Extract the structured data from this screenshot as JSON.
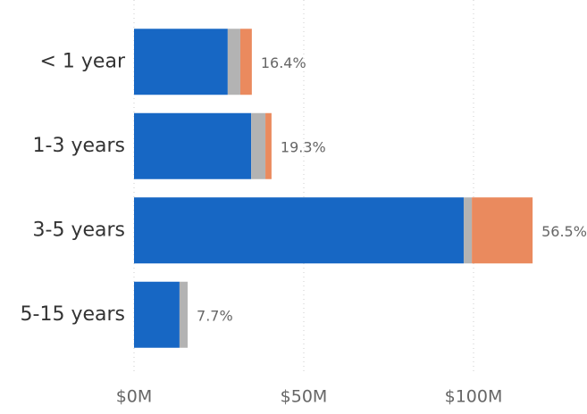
{
  "chart_data": {
    "type": "stacked-bar-horizontal",
    "categories": [
      "< 1 year",
      "1-3 years",
      "3-5 years",
      "5-15 years"
    ],
    "series": [
      {
        "color": "#1767c4",
        "values": [
          27.6,
          34.5,
          97.1,
          13.4
        ]
      },
      {
        "color": "#b3b3b3",
        "values": [
          3.7,
          4.2,
          2.4,
          2.4
        ]
      },
      {
        "color": "#ea8a5e",
        "values": [
          3.4,
          1.8,
          17.9,
          0
        ]
      }
    ],
    "shares": [
      16.4,
      19.3,
      56.5,
      7.7
    ],
    "share_labels": [
      "16.4%",
      "19.3%",
      "56.5%",
      "7.7%"
    ],
    "xlim": [
      0,
      130
    ],
    "xticks": [
      {
        "value": 0,
        "label": "$0M"
      },
      {
        "value": 50,
        "label": "$50M"
      },
      {
        "value": 100,
        "label": "$100M"
      }
    ],
    "grid": true
  }
}
